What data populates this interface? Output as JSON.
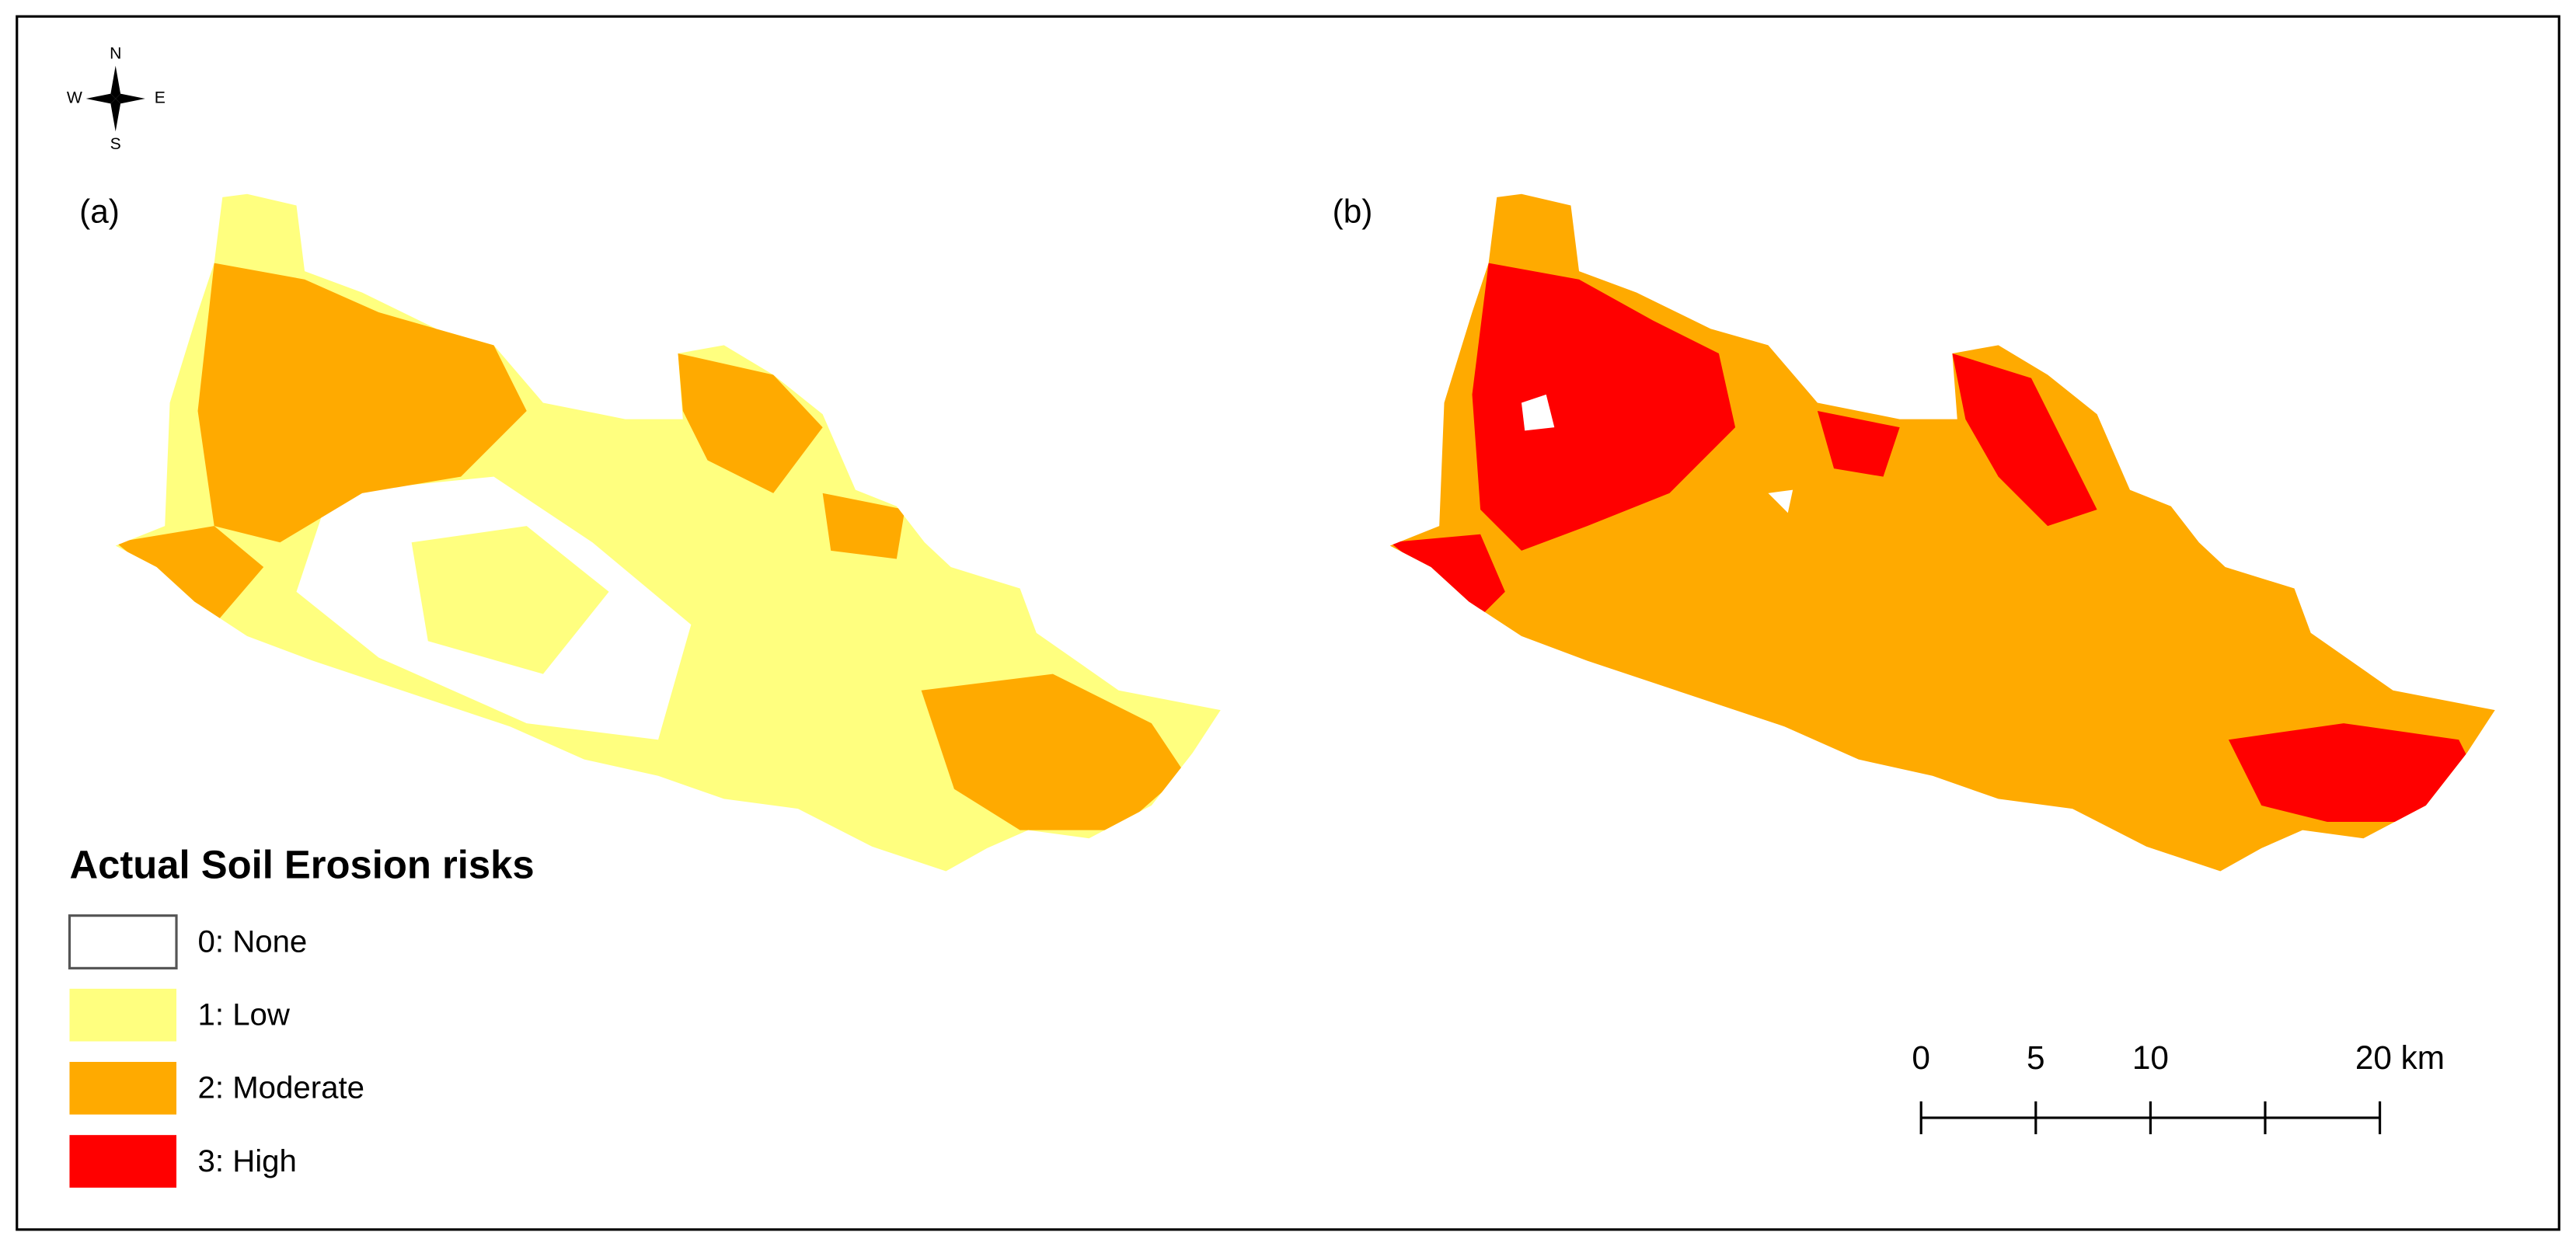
{
  "compass": {
    "north": "N",
    "east": "E",
    "south": "S",
    "west": "W"
  },
  "panels": [
    {
      "label": "(a)"
    },
    {
      "label": "(b)"
    }
  ],
  "legend": {
    "title": "Actual Soil Erosion risks",
    "items": [
      {
        "label": "0: None",
        "color": "#ffffff"
      },
      {
        "label": "1: Low",
        "color": "#ffff7f"
      },
      {
        "label": "2: Moderate",
        "color": "#ffaa00"
      },
      {
        "label": "3: High",
        "color": "#ff0000"
      }
    ]
  },
  "scale_bar": {
    "range": [
      0,
      20
    ],
    "ticks": [
      0,
      5,
      10,
      {
        "value": 15,
        "label": null
      },
      {
        "value": 20,
        "label": "20 km"
      }
    ]
  }
}
